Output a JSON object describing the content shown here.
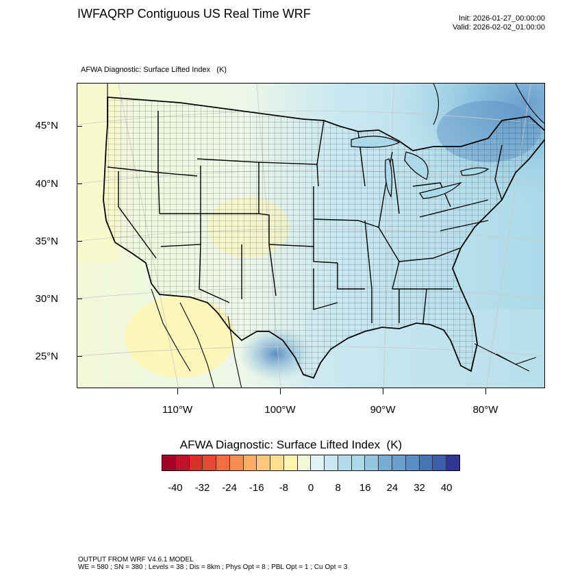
{
  "header": {
    "title": "IWFAQRP Contiguous US Real Time WRF",
    "init": "Init: 2026-01-27_00:00:00",
    "valid": "Valid: 2026-02-02_01:00:00",
    "subtitle": "AFWA Diagnostic: Surface Lifted Index   (K)"
  },
  "map": {
    "projection": "Lambert conformal, contiguous United States",
    "lat_ticks": [
      "45°N",
      "40°N",
      "35°N",
      "30°N",
      "25°N"
    ],
    "lon_ticks": [
      "110°W",
      "100°W",
      "90°W",
      "80°W"
    ],
    "lat_values": [
      45,
      40,
      35,
      30,
      25
    ],
    "lon_values": [
      -110,
      -100,
      -90,
      -80
    ],
    "field_summary": {
      "west_coast_and_great_basin": "0 to 8",
      "desert_southwest_and_baja": "-4 to 4",
      "plains": "8 to 16",
      "east_and_atlantic": "16 to 28",
      "great_lakes_and_northeast_canada": "24 to 32",
      "texas_coast": "28 to 32"
    }
  },
  "colorbar": {
    "title": "AFWA Diagnostic: Surface Lifted Index  (K)",
    "tick_labels": [
      "-40",
      "-32",
      "-24",
      "-16",
      "-8",
      "0",
      "8",
      "16",
      "24",
      "32",
      "40"
    ],
    "colors": [
      "#a50026",
      "#c1122a",
      "#d73027",
      "#e34a33",
      "#f46d43",
      "#f88d52",
      "#fdae61",
      "#fec87a",
      "#fee090",
      "#fff5b0",
      "#f2f9d8",
      "#e0f3f8",
      "#cae8f1",
      "#b4dbea",
      "#abd9e9",
      "#93c6e0",
      "#74add1",
      "#6a9fcc",
      "#5a8ec4",
      "#4575b4",
      "#3b5fab",
      "#313695"
    ]
  },
  "footer": {
    "line1": "OUTPUT FROM WRF V4.6.1 MODEL",
    "line2": "WE = 580 ; SN = 380 ; Levels = 38 ; Dis = 8km ; Phys Opt = 8 ; PBL Opt = 1 ; Cu Opt = 3"
  }
}
